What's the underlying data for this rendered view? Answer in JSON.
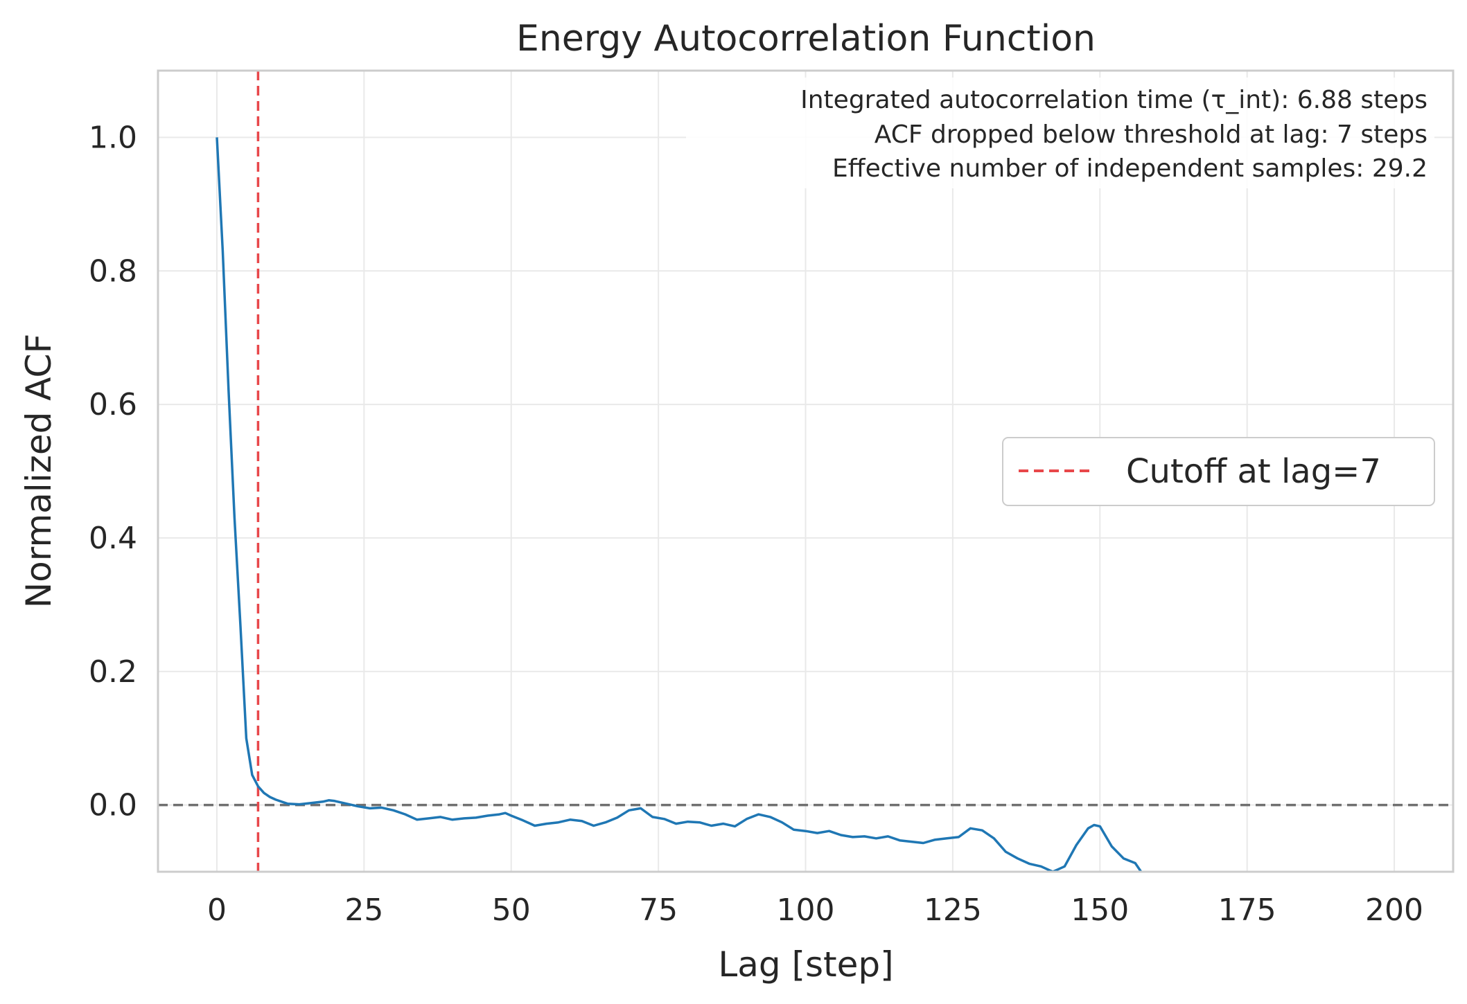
{
  "chart_data": {
    "type": "line",
    "title": "Energy Autocorrelation Function",
    "xlabel": "Lag [step]",
    "ylabel": "Normalized ACF",
    "xlim": [
      -10,
      210
    ],
    "ylim": [
      -0.1,
      1.1
    ],
    "xticks": [
      0,
      25,
      50,
      75,
      100,
      125,
      150,
      175,
      200
    ],
    "yticks": [
      0.0,
      0.2,
      0.4,
      0.6,
      0.8,
      1.0
    ],
    "xtick_labels": [
      "0",
      "25",
      "50",
      "75",
      "100",
      "125",
      "150",
      "175",
      "200"
    ],
    "ytick_labels": [
      "0.0",
      "0.2",
      "0.4",
      "0.6",
      "0.8",
      "1.0"
    ],
    "grid": true,
    "legend_position": "center-right",
    "annotation": [
      "Integrated autocorrelation time (τ_int): 6.88 steps",
      "ACF dropped below threshold at lag: 7 steps",
      "Effective number of independent samples: 29.2"
    ],
    "zero_line": {
      "y": 0,
      "color": "#707070",
      "style": "dashed"
    },
    "cutoff": {
      "x": 7,
      "label": "Cutoff at lag=7",
      "color": "#e8474a",
      "style": "dashed"
    },
    "series": [
      {
        "color": "#1f77b4",
        "x": [
          0,
          1,
          2,
          3,
          4,
          5,
          6,
          7,
          8,
          9,
          10,
          12,
          14,
          16,
          18,
          19,
          20,
          22,
          24,
          26,
          28,
          30,
          32,
          34,
          36,
          38,
          40,
          42,
          44,
          46,
          48,
          49,
          50,
          52,
          54,
          56,
          58,
          60,
          62,
          64,
          66,
          68,
          70,
          72,
          74,
          76,
          78,
          80,
          82,
          84,
          86,
          88,
          90,
          92,
          94,
          96,
          98,
          100,
          102,
          104,
          106,
          108,
          110,
          112,
          114,
          116,
          118,
          120,
          122,
          124,
          126,
          128,
          130,
          132,
          134,
          136,
          138,
          140,
          142,
          144,
          146,
          148,
          149,
          150,
          152,
          154,
          156,
          157
        ],
        "y": [
          1.0,
          0.83,
          0.62,
          0.43,
          0.27,
          0.1,
          0.045,
          0.028,
          0.018,
          0.012,
          0.008,
          0.002,
          0.001,
          0.003,
          0.005,
          0.007,
          0.006,
          0.002,
          -0.002,
          -0.005,
          -0.004,
          -0.008,
          -0.014,
          -0.022,
          -0.02,
          -0.018,
          -0.022,
          -0.02,
          -0.019,
          -0.016,
          -0.014,
          -0.012,
          -0.016,
          -0.023,
          -0.031,
          -0.028,
          -0.026,
          -0.022,
          -0.024,
          -0.031,
          -0.026,
          -0.019,
          -0.008,
          -0.005,
          -0.018,
          -0.021,
          -0.028,
          -0.025,
          -0.026,
          -0.031,
          -0.028,
          -0.032,
          -0.021,
          -0.014,
          -0.018,
          -0.026,
          -0.037,
          -0.039,
          -0.042,
          -0.039,
          -0.045,
          -0.048,
          -0.047,
          -0.05,
          -0.047,
          -0.053,
          -0.055,
          -0.057,
          -0.052,
          -0.05,
          -0.048,
          -0.035,
          -0.038,
          -0.05,
          -0.07,
          -0.08,
          -0.088,
          -0.092,
          -0.1,
          -0.092,
          -0.06,
          -0.035,
          -0.03,
          -0.032,
          -0.062,
          -0.08,
          -0.087,
          -0.1
        ]
      }
    ]
  }
}
